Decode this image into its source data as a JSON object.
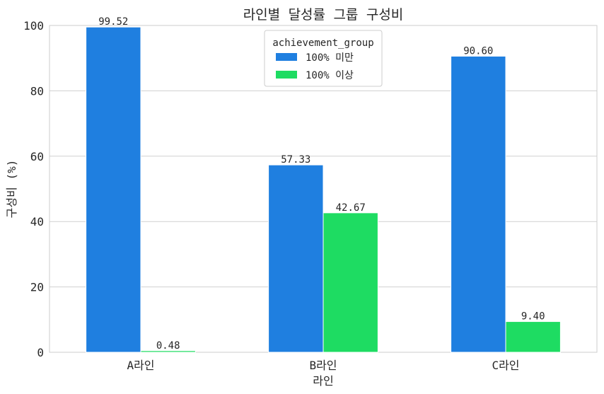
{
  "chart_data": {
    "type": "bar",
    "title": "라인별 달성률 그룹 구성비",
    "xlabel": "라인",
    "ylabel": "구성비 (%)",
    "categories": [
      "A라인",
      "B라인",
      "C라인"
    ],
    "ylim": [
      0,
      100
    ],
    "yticks": [
      "0",
      "20",
      "40",
      "60",
      "80",
      "100"
    ],
    "grid": true,
    "legend": {
      "title": "achievement_group",
      "placement": "top-center"
    },
    "series": [
      {
        "name": "100% 미만",
        "color": "#1f7fe0",
        "values": [
          99.52,
          57.33,
          90.6
        ],
        "labels": [
          "99.52",
          "57.33",
          "90.60"
        ]
      },
      {
        "name": "100% 이상",
        "color": "#1edc62",
        "values": [
          0.48,
          42.67,
          9.4
        ],
        "labels": [
          "0.48",
          "42.67",
          "9.40"
        ]
      }
    ]
  }
}
